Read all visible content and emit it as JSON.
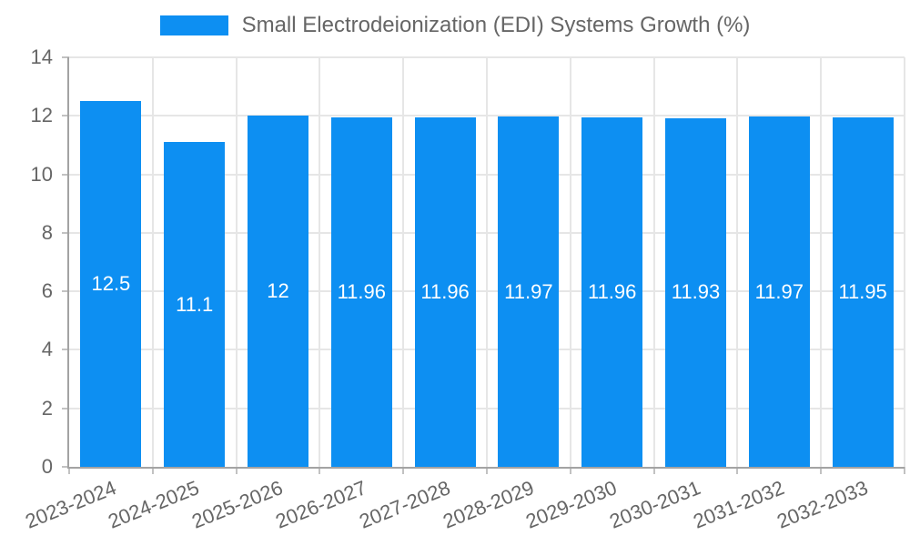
{
  "legend": {
    "label": "Small Electrodeionization (EDI) Systems Growth (%)",
    "swatch_color": "#0d8ff2"
  },
  "chart_data": {
    "type": "bar",
    "title": "Small Electrodeionization (EDI) Systems Growth (%)",
    "categories": [
      "2023-2024",
      "2024-2025",
      "2025-2026",
      "2026-2027",
      "2027-2028",
      "2028-2029",
      "2029-2030",
      "2030-2031",
      "2031-2032",
      "2032-2033"
    ],
    "values": [
      12.5,
      11.1,
      12,
      11.96,
      11.96,
      11.97,
      11.96,
      11.93,
      11.97,
      11.95
    ],
    "bar_labels": [
      "12.5",
      "11.1",
      "12",
      "11.96",
      "11.96",
      "11.97",
      "11.96",
      "11.93",
      "11.97",
      "11.95"
    ],
    "xlabel": "",
    "ylabel": "",
    "ylim": [
      0,
      14
    ],
    "yticks": [
      0,
      2,
      4,
      6,
      8,
      10,
      12,
      14
    ],
    "grid": true,
    "legend_position": "top",
    "bar_color": "#0d8ff2",
    "bar_label_color": "#ffffff"
  },
  "colors": {
    "bar": "#0d8ff2",
    "axis_text": "#666666",
    "grid_line": "#e6e6e6",
    "axis_line": "#a3a3a3",
    "tick": "#c2c2c2",
    "background": "#ffffff"
  }
}
